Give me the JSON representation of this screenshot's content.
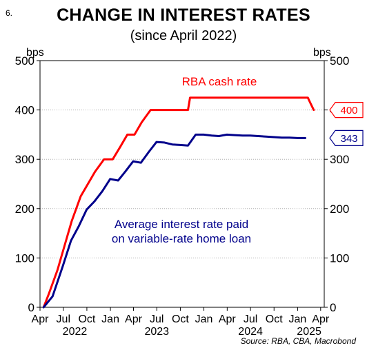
{
  "page_number": "6.",
  "chart_data": {
    "type": "line",
    "title": "CHANGE IN INTEREST RATES",
    "subtitle": "(since April 2022)",
    "y_unit_left": "bps",
    "y_unit_right": "bps",
    "ylim": [
      0,
      500
    ],
    "y_ticks": [
      0,
      100,
      200,
      300,
      400,
      500
    ],
    "xlim": [
      "2022-04-01",
      "2025-04-15"
    ],
    "x_ticks": [
      {
        "date": "2022-04-01",
        "label": "Apr"
      },
      {
        "date": "2022-07-01",
        "label": "Jul"
      },
      {
        "date": "2022-10-01",
        "label": "Oct"
      },
      {
        "date": "2023-01-01",
        "label": "Jan"
      },
      {
        "date": "2023-04-01",
        "label": "Apr"
      },
      {
        "date": "2023-07-01",
        "label": "Jul"
      },
      {
        "date": "2023-10-01",
        "label": "Oct"
      },
      {
        "date": "2024-01-01",
        "label": "Jan"
      },
      {
        "date": "2024-04-01",
        "label": "Apr"
      },
      {
        "date": "2024-07-01",
        "label": "Jul"
      },
      {
        "date": "2024-10-01",
        "label": "Oct"
      },
      {
        "date": "2025-01-01",
        "label": "Jan"
      },
      {
        "date": "2025-04-01",
        "label": "Apr"
      }
    ],
    "year_labels": [
      {
        "date": "2022-08-15",
        "label": "2022"
      },
      {
        "date": "2023-07-01",
        "label": "2023"
      },
      {
        "date": "2024-07-01",
        "label": "2024"
      },
      {
        "date": "2025-02-15",
        "label": "2025"
      }
    ],
    "grid": true,
    "series": [
      {
        "name": "RBA cash rate",
        "color": "#ff0000",
        "end_label": "400",
        "points": [
          [
            "2022-04-15",
            0
          ],
          [
            "2022-05-04",
            25
          ],
          [
            "2022-06-08",
            75
          ],
          [
            "2022-07-06",
            125
          ],
          [
            "2022-08-03",
            175
          ],
          [
            "2022-09-07",
            225
          ],
          [
            "2022-10-05",
            250
          ],
          [
            "2022-11-02",
            275
          ],
          [
            "2022-12-07",
            300
          ],
          [
            "2023-01-10",
            300
          ],
          [
            "2023-02-08",
            325
          ],
          [
            "2023-03-08",
            350
          ],
          [
            "2023-04-05",
            350
          ],
          [
            "2023-05-03",
            375
          ],
          [
            "2023-06-07",
            400
          ],
          [
            "2023-10-31",
            400
          ],
          [
            "2023-11-08",
            425
          ],
          [
            "2025-02-10",
            425
          ],
          [
            "2025-02-19",
            415
          ],
          [
            "2025-03-05",
            400
          ]
        ]
      },
      {
        "name": "Average interest rate paid on variable-rate home loan",
        "label_lines": [
          "Average interest rate paid",
          "on variable-rate home loan"
        ],
        "color": "#00008b",
        "end_label": "343",
        "points": [
          [
            "2022-04-15",
            0
          ],
          [
            "2022-05-20",
            22
          ],
          [
            "2022-06-30",
            85
          ],
          [
            "2022-07-31",
            135
          ],
          [
            "2022-08-31",
            165
          ],
          [
            "2022-09-30",
            198
          ],
          [
            "2022-10-31",
            215
          ],
          [
            "2022-11-30",
            235
          ],
          [
            "2022-12-31",
            260
          ],
          [
            "2023-01-31",
            257
          ],
          [
            "2023-02-28",
            275
          ],
          [
            "2023-03-31",
            296
          ],
          [
            "2023-04-30",
            293
          ],
          [
            "2023-05-31",
            315
          ],
          [
            "2023-06-30",
            335
          ],
          [
            "2023-07-31",
            334
          ],
          [
            "2023-08-31",
            330
          ],
          [
            "2023-09-30",
            329
          ],
          [
            "2023-10-31",
            328
          ],
          [
            "2023-11-30",
            350
          ],
          [
            "2023-12-31",
            350
          ],
          [
            "2024-01-31",
            348
          ],
          [
            "2024-02-29",
            347
          ],
          [
            "2024-03-31",
            350
          ],
          [
            "2024-04-30",
            349
          ],
          [
            "2024-05-31",
            348
          ],
          [
            "2024-06-30",
            348
          ],
          [
            "2024-07-31",
            347
          ],
          [
            "2024-08-31",
            346
          ],
          [
            "2024-09-30",
            345
          ],
          [
            "2024-10-31",
            344
          ],
          [
            "2024-11-30",
            344
          ],
          [
            "2024-12-31",
            343
          ],
          [
            "2025-01-31",
            343
          ]
        ]
      }
    ]
  },
  "source": "Source: RBA, CBA, Macrobond"
}
